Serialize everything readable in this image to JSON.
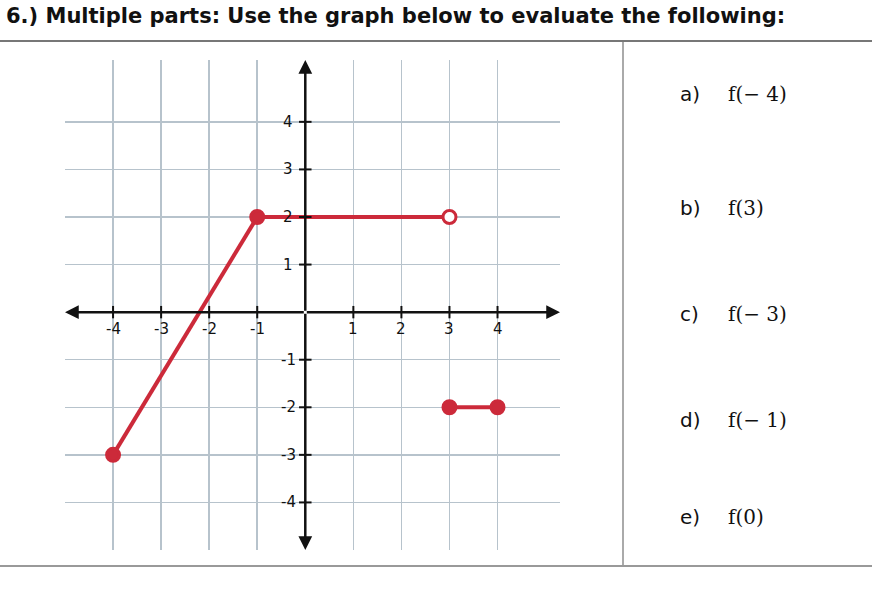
{
  "header": {
    "title": "6.) Multiple parts: Use the graph below to evaluate the following:"
  },
  "parts": [
    {
      "label": "a)",
      "text": "f(− 4)"
    },
    {
      "label": "b)",
      "text": "f(3)"
    },
    {
      "label": "c)",
      "text": "f(− 3)"
    },
    {
      "label": "d)",
      "text": "f(− 1)"
    },
    {
      "label": "e)",
      "text": "f(0)"
    }
  ],
  "chart_data": {
    "type": "line",
    "xlim": [
      -5,
      5.3
    ],
    "ylim": [
      -5,
      5.3
    ],
    "xticks": [
      -4,
      -3,
      -2,
      -1,
      1,
      2,
      3,
      4
    ],
    "yticks": [
      -4,
      -3,
      -2,
      -1,
      1,
      2,
      3,
      4
    ],
    "grid": true,
    "series": [
      {
        "type": "line",
        "color": "#cc2a3a",
        "x": [
          -4,
          -1
        ],
        "values": [
          -3,
          2
        ]
      },
      {
        "type": "line",
        "color": "#cc2a3a",
        "x": [
          -1,
          3
        ],
        "values": [
          2,
          2
        ]
      },
      {
        "type": "line",
        "color": "#cc2a3a",
        "x": [
          3,
          4
        ],
        "values": [
          -2,
          -2
        ]
      },
      {
        "type": "scatter",
        "marker": "circle",
        "color": "#cc2a3a",
        "x": [
          -4,
          -1,
          3,
          4
        ],
        "values": [
          -3,
          2,
          -2,
          -2
        ]
      },
      {
        "type": "scatter",
        "marker": "circle-open",
        "color": "#cc2a3a",
        "x": [
          3
        ],
        "values": [
          2
        ]
      }
    ]
  }
}
